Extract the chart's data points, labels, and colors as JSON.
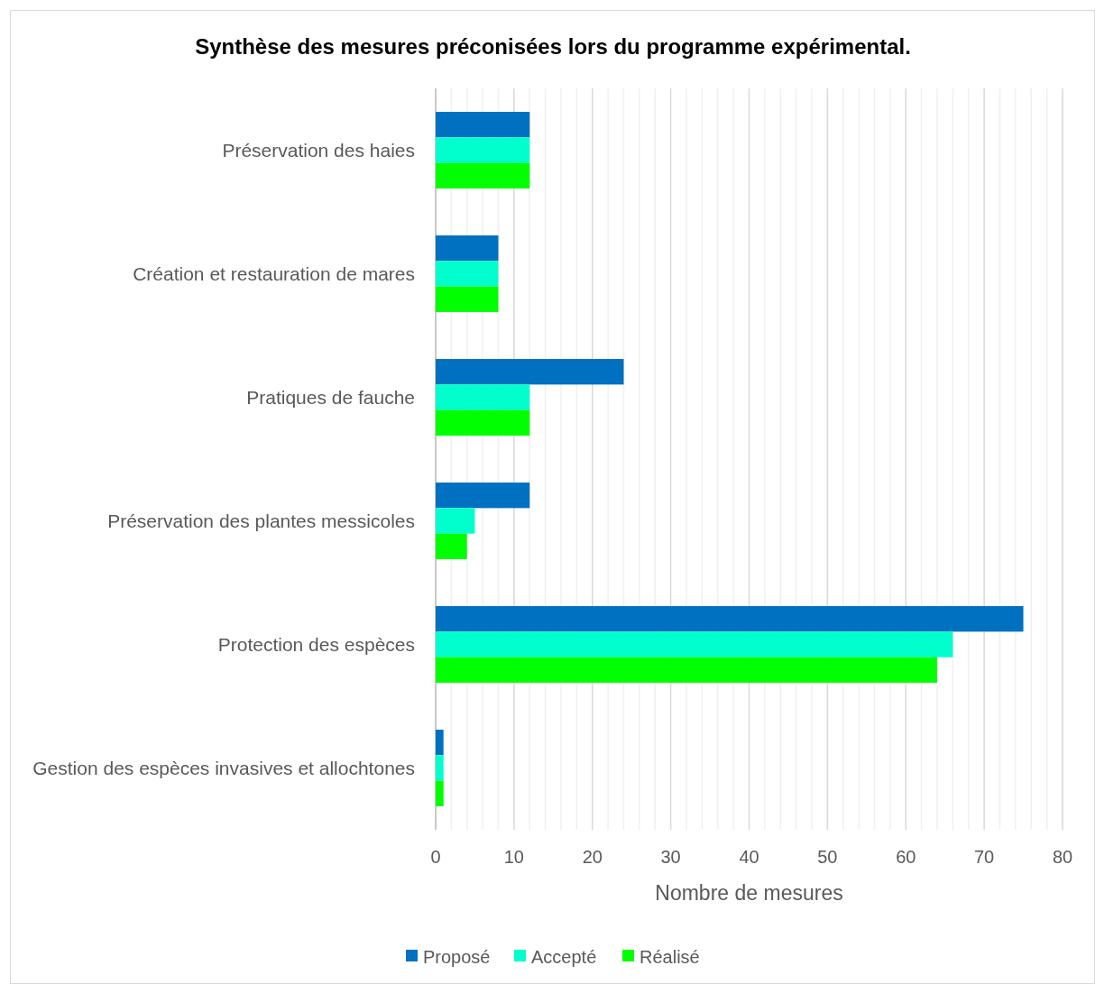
{
  "chart_data": {
    "type": "bar",
    "orientation": "horizontal",
    "title": "Synthèse des mesures préconisées lors du programme expérimental.",
    "xlabel": "Nombre de mesures",
    "categories": [
      "Préservation des haies",
      "Création et restauration de mares",
      "Pratiques de fauche",
      "Préservation des plantes messicoles",
      "Protection des espèces",
      "Gestion des espèces invasives et allochtones"
    ],
    "series": [
      {
        "name": "Proposé",
        "color": "#0070c0",
        "values": [
          12,
          8,
          24,
          12,
          75,
          1
        ]
      },
      {
        "name": "Accepté",
        "color": "#00ffcc",
        "values": [
          12,
          8,
          12,
          5,
          66,
          1
        ]
      },
      {
        "name": "Réalisé",
        "color": "#00ff00",
        "values": [
          12,
          8,
          12,
          4,
          64,
          1
        ]
      }
    ],
    "xlim": [
      0,
      80
    ],
    "xticks": [
      0,
      {
        "value": 2,
        "label": null
      },
      {
        "value": 4,
        "label": null
      },
      {
        "value": 6,
        "label": null
      },
      {
        "value": 8,
        "label": null
      },
      10,
      {
        "value": 12,
        "label": null
      },
      {
        "value": 14,
        "label": null
      },
      {
        "value": 16,
        "label": null
      },
      {
        "value": 18,
        "label": null
      },
      20,
      {
        "value": 22,
        "label": null
      },
      {
        "value": 24,
        "label": null
      },
      {
        "value": 26,
        "label": null
      },
      {
        "value": 28,
        "label": null
      },
      30,
      {
        "value": 32,
        "label": null
      },
      {
        "value": 34,
        "label": null
      },
      {
        "value": 36,
        "label": null
      },
      {
        "value": 38,
        "label": null
      },
      40,
      {
        "value": 42,
        "label": null
      },
      {
        "value": 44,
        "label": null
      },
      {
        "value": 46,
        "label": null
      },
      {
        "value": 48,
        "label": null
      },
      50,
      {
        "value": 52,
        "label": null
      },
      {
        "value": 54,
        "label": null
      },
      {
        "value": 56,
        "label": null
      },
      {
        "value": 58,
        "label": null
      },
      60,
      {
        "value": 62,
        "label": null
      },
      {
        "value": 64,
        "label": null
      },
      {
        "value": 66,
        "label": null
      },
      {
        "value": 68,
        "label": null
      },
      70,
      {
        "value": 72,
        "label": null
      },
      {
        "value": 74,
        "label": null
      },
      {
        "value": 76,
        "label": null
      },
      {
        "value": 78,
        "label": null
      },
      80
    ],
    "grid": "x",
    "legend": "bottom"
  }
}
